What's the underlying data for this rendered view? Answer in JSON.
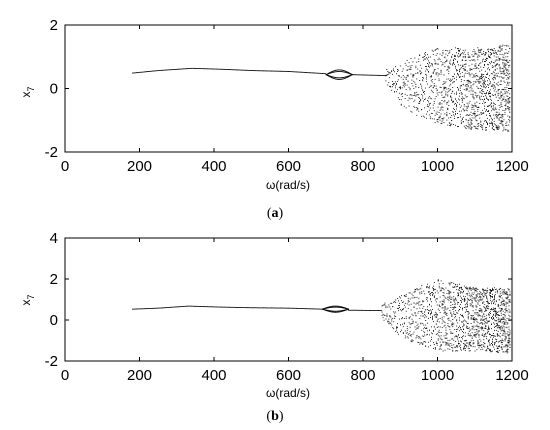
{
  "chart_data": [
    {
      "type": "scatter",
      "panel_label": "(a)",
      "panel_letter": "a",
      "xlabel": "ω(rad/s)",
      "ylabel": "x",
      "ylabel_sub": "7",
      "xlim": [
        0,
        1200
      ],
      "ylim": [
        -2,
        2
      ],
      "xticks": [
        0,
        200,
        400,
        600,
        800,
        1000,
        1200
      ],
      "yticks": [
        -2,
        0,
        2
      ],
      "grid": false,
      "regimes": [
        {
          "kind": "period-1",
          "x_range": [
            180,
            700
          ],
          "y_points": [
            [
              180,
              0.5
            ],
            [
              250,
              0.58
            ],
            [
              340,
              0.65
            ],
            [
              420,
              0.62
            ],
            [
              500,
              0.58
            ],
            [
              600,
              0.55
            ],
            [
              700,
              0.48
            ]
          ]
        },
        {
          "kind": "period-2",
          "x_range": [
            700,
            770
          ],
          "y_levels": [
            [
              0.3,
              0.6
            ],
            [
              0.35,
              0.55
            ]
          ]
        },
        {
          "kind": "period-1",
          "x_range": [
            770,
            860
          ],
          "y_points": [
            [
              770,
              0.45
            ],
            [
              860,
              0.42
            ]
          ]
        },
        {
          "kind": "chaos",
          "x_range": [
            860,
            1195
          ],
          "envelope": [
            [
              860,
              0.1,
              0.6
            ],
            [
              900,
              -0.5,
              0.8
            ],
            [
              950,
              -0.9,
              1.1
            ],
            [
              1000,
              -1.1,
              1.3
            ],
            [
              1050,
              -1.2,
              1.3
            ],
            [
              1100,
              -1.3,
              1.3
            ],
            [
              1150,
              -1.3,
              1.35
            ],
            [
              1195,
              -1.35,
              1.4
            ]
          ]
        }
      ]
    },
    {
      "type": "scatter",
      "panel_label": "(b)",
      "panel_letter": "b",
      "xlabel": "ω(rad/s)",
      "ylabel": "x",
      "ylabel_sub": "7",
      "xlim": [
        0,
        1200
      ],
      "ylim": [
        -2,
        4
      ],
      "xticks": [
        0,
        200,
        400,
        600,
        800,
        1000,
        1200
      ],
      "yticks": [
        -2,
        0,
        2,
        4
      ],
      "grid": false,
      "regimes": [
        {
          "kind": "period-1",
          "x_range": [
            180,
            690
          ],
          "y_points": [
            [
              180,
              0.55
            ],
            [
              250,
              0.6
            ],
            [
              330,
              0.7
            ],
            [
              420,
              0.65
            ],
            [
              500,
              0.62
            ],
            [
              600,
              0.6
            ],
            [
              690,
              0.55
            ]
          ]
        },
        {
          "kind": "period-2",
          "x_range": [
            690,
            760
          ],
          "y_levels": [
            [
              0.4,
              0.7
            ],
            [
              0.45,
              0.65
            ]
          ]
        },
        {
          "kind": "period-1",
          "x_range": [
            760,
            850
          ],
          "y_points": [
            [
              760,
              0.5
            ],
            [
              850,
              0.48
            ]
          ]
        },
        {
          "kind": "chaos",
          "x_range": [
            850,
            1195
          ],
          "envelope": [
            [
              850,
              0.1,
              0.8
            ],
            [
              900,
              -0.8,
              1.2
            ],
            [
              950,
              -1.2,
              1.7
            ],
            [
              1000,
              -1.5,
              2.0
            ],
            [
              1050,
              -1.5,
              1.8
            ],
            [
              1100,
              -1.5,
              1.6
            ],
            [
              1150,
              -1.55,
              1.6
            ],
            [
              1195,
              -1.6,
              1.55
            ]
          ]
        }
      ]
    }
  ]
}
